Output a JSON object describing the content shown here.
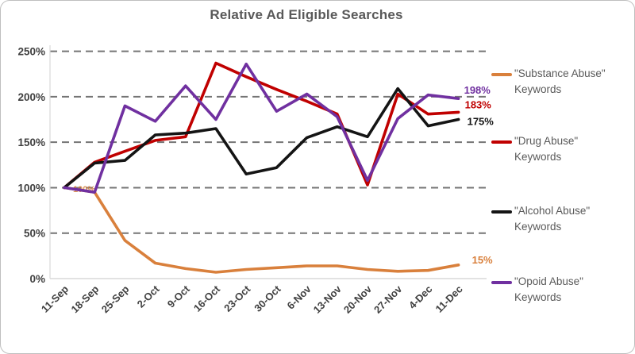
{
  "chart_data": {
    "type": "line",
    "title": "Relative Ad Eligible Searches",
    "categories": [
      "11-Sep",
      "18-Sep",
      "25-Sep",
      "2-Oct",
      "9-Oct",
      "16-Oct",
      "23-Oct",
      "30-Oct",
      "6-Nov",
      "13-Nov",
      "20-Nov",
      "27-Nov",
      "4-Dec",
      "11-Dec"
    ],
    "series": [
      {
        "key": "substance-abuse",
        "name": "\"Substance Abuse\" Keywords",
        "legend_line1": "\"Substance Abuse\"",
        "legend_line2": "Keywords",
        "color": "#D9803C",
        "values": [
          100,
          95,
          42,
          17,
          11,
          7,
          10,
          12,
          14,
          14,
          10,
          8,
          9,
          15
        ],
        "end_label": "15%",
        "start_label": "100%"
      },
      {
        "key": "drug-abuse",
        "name": "\"Drug Abuse\" Keywords",
        "legend_line1": "\"Drug Abuse\"",
        "legend_line2": "Keywords",
        "color": "#C00000",
        "values": [
          100,
          128,
          140,
          152,
          156,
          237,
          222,
          208,
          195,
          181,
          103,
          203,
          181,
          183
        ],
        "end_label": "183%"
      },
      {
        "key": "alcohol-abuse",
        "name": "\"Alcohol Abuse\" Keywords",
        "legend_line1": "\"Alcohol Abuse\"",
        "legend_line2": "Keywords",
        "color": "#141414",
        "values": [
          100,
          127,
          130,
          158,
          160,
          165,
          115,
          122,
          155,
          167,
          156,
          209,
          168,
          175
        ],
        "end_label": "175%"
      },
      {
        "key": "opoid-abuse",
        "name": "\"Opoid Abuse\" Keywords",
        "legend_line1": "\"Opoid Abuse\"",
        "legend_line2": "Keywords",
        "color": "#7030A0",
        "values": [
          100,
          95,
          190,
          173,
          212,
          175,
          236,
          184,
          203,
          178,
          108,
          176,
          202,
          198
        ],
        "end_label": "198%"
      }
    ],
    "y_ticks": [
      0,
      50,
      100,
      150,
      200,
      250
    ],
    "y_tick_labels": [
      "0%",
      "50%",
      "100%",
      "150%",
      "200%",
      "250%"
    ],
    "ylim": [
      0,
      250
    ],
    "grid": "horizontal-dashed",
    "legend_position": "right"
  },
  "styles": {
    "title_color": "#595959",
    "tick_color": "#404040",
    "grid_color": "#757575",
    "axis_color": "#D9D9D9",
    "legend_text_color": "#595959",
    "frame_border_color": "#BFBFBF"
  }
}
